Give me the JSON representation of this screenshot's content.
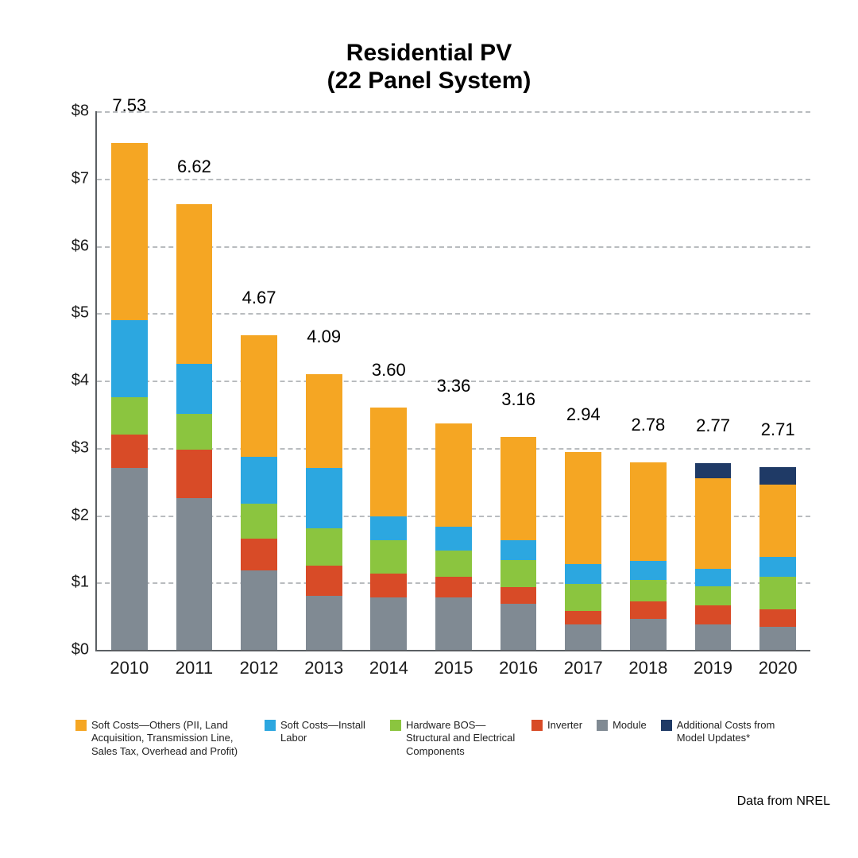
{
  "chart": {
    "type": "stacked-bar",
    "title_line1": "Residential PV",
    "title_line2": "(22 Panel System)",
    "title_fontsize": 30,
    "title_color": "#000000",
    "arrow_color": "#5b5f63",
    "background_color": "#ffffff",
    "axis_color": "#5b5f63",
    "grid_color": "#b9bcbf",
    "grid_dash": "6 6",
    "ylim_min": 0,
    "ylim_max": 8,
    "ytick_step": 1,
    "y_prefix": "$",
    "yticks": [
      {
        "v": 0,
        "label": "$0"
      },
      {
        "v": 1,
        "label": "$1"
      },
      {
        "v": 2,
        "label": "$2"
      },
      {
        "v": 3,
        "label": "$3"
      },
      {
        "v": 4,
        "label": "$4"
      },
      {
        "v": 5,
        "label": "$5"
      },
      {
        "v": 6,
        "label": "$6"
      },
      {
        "v": 7,
        "label": "$7"
      },
      {
        "v": 8,
        "label": "$8"
      }
    ],
    "categories": [
      "2010",
      "2011",
      "2012",
      "2013",
      "2014",
      "2015",
      "2016",
      "2017",
      "2018",
      "2019",
      "2020"
    ],
    "series": [
      {
        "key": "module",
        "label": "Module",
        "color": "#808a93"
      },
      {
        "key": "inverter",
        "label": "Inverter",
        "color": "#d84b27"
      },
      {
        "key": "bos",
        "label": "Hardware BOS—Structural and Electrical Components",
        "color": "#8bc53f"
      },
      {
        "key": "labor",
        "label": "Soft Costs—Install Labor",
        "color": "#2ca7e0"
      },
      {
        "key": "other",
        "label": "Soft Costs—Others (PII, Land Acquisition, Transmission Line, Sales Tax, Overhead and Profit)",
        "color": "#f5a623"
      },
      {
        "key": "addl",
        "label": "Additional Costs from Model Updates*",
        "color": "#1f3a66"
      }
    ],
    "legend_order": [
      "other",
      "labor",
      "bos",
      "inverter",
      "module",
      "addl"
    ],
    "bar_width_ratio": 0.56,
    "data": [
      {
        "year": "2010",
        "total": "7.53",
        "module": 2.7,
        "inverter": 0.5,
        "bos": 0.55,
        "labor": 1.15,
        "other": 2.63,
        "addl": 0.0
      },
      {
        "year": "2011",
        "total": "6.62",
        "module": 2.25,
        "inverter": 0.72,
        "bos": 0.53,
        "labor": 0.75,
        "other": 2.37,
        "addl": 0.0
      },
      {
        "year": "2012",
        "total": "4.67",
        "module": 1.18,
        "inverter": 0.47,
        "bos": 0.52,
        "labor": 0.7,
        "other": 1.8,
        "addl": 0.0
      },
      {
        "year": "2013",
        "total": "4.09",
        "module": 0.8,
        "inverter": 0.45,
        "bos": 0.55,
        "labor": 0.9,
        "other": 1.39,
        "addl": 0.0
      },
      {
        "year": "2014",
        "total": "3.60",
        "module": 0.78,
        "inverter": 0.35,
        "bos": 0.5,
        "labor": 0.35,
        "other": 1.62,
        "addl": 0.0
      },
      {
        "year": "2015",
        "total": "3.36",
        "module": 0.78,
        "inverter": 0.3,
        "bos": 0.4,
        "labor": 0.35,
        "other": 1.53,
        "addl": 0.0
      },
      {
        "year": "2016",
        "total": "3.16",
        "module": 0.68,
        "inverter": 0.25,
        "bos": 0.4,
        "labor": 0.3,
        "other": 1.53,
        "addl": 0.0
      },
      {
        "year": "2017",
        "total": "2.94",
        "module": 0.38,
        "inverter": 0.2,
        "bos": 0.4,
        "labor": 0.3,
        "other": 1.66,
        "addl": 0.0
      },
      {
        "year": "2018",
        "total": "2.78",
        "module": 0.46,
        "inverter": 0.26,
        "bos": 0.32,
        "labor": 0.28,
        "other": 1.46,
        "addl": 0.0
      },
      {
        "year": "2019",
        "total": "2.77",
        "module": 0.38,
        "inverter": 0.28,
        "bos": 0.28,
        "labor": 0.26,
        "other": 1.35,
        "addl": 0.22
      },
      {
        "year": "2020",
        "total": "2.71",
        "module": 0.34,
        "inverter": 0.26,
        "bos": 0.48,
        "labor": 0.3,
        "other": 1.07,
        "addl": 0.26
      }
    ],
    "xlabel_fontsize": 22,
    "ylabel_fontsize": 20,
    "total_label_fontsize": 22,
    "legend_fontsize": 13
  },
  "attribution": "Data from NREL"
}
